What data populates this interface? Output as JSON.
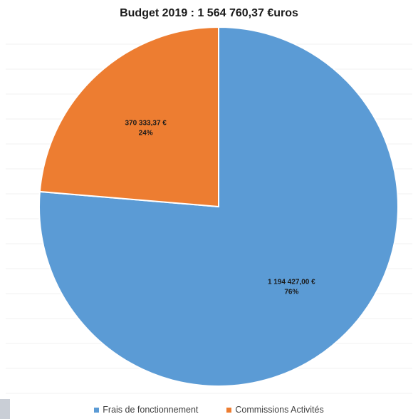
{
  "chart_data": {
    "type": "pie",
    "title": "Budget 2019 : 1 564 760,37 €uros",
    "total": 1564760.37,
    "slices": [
      {
        "name": "Frais de fonctionnement",
        "value": 1194427.0,
        "value_label": "1 194 427,00 €",
        "percent_label": "76%",
        "color": "#5b9bd5"
      },
      {
        "name": "Commissions Activités",
        "value": 370333.37,
        "value_label": "370 333,37 €",
        "percent_label": "24%",
        "color": "#ed7d31"
      }
    ],
    "legend_position": "bottom",
    "start_angle": "12 o'clock",
    "direction": "counter-clockwise for second slice (first slice clockwise from top)"
  }
}
